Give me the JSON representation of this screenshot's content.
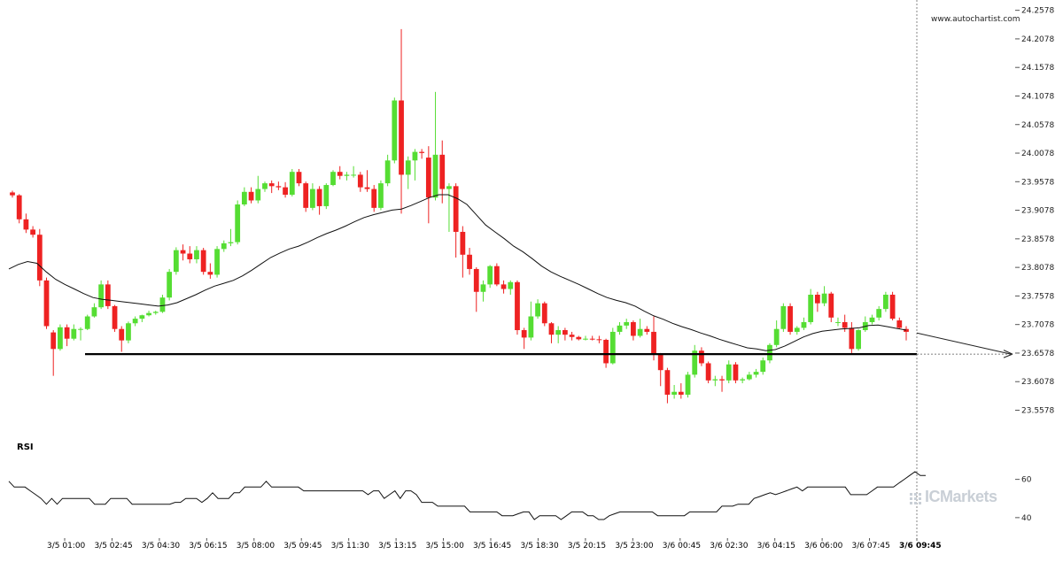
{
  "watermark": "www.autochartist.com",
  "rsi_label": "RSI",
  "brand": "ICMarkets",
  "colors": {
    "bull": "#55dd33",
    "bear": "#ee2222",
    "wick": "#999999",
    "line": "#000000",
    "grid": "#e6e6e6",
    "text": "#222222"
  },
  "chart_data": [
    {
      "type": "candlestick",
      "title": "",
      "timeframe_labels": [
        "3/5 01:00",
        "3/5 02:45",
        "3/5 04:30",
        "3/5 06:15",
        "3/5 08:00",
        "3/5 09:45",
        "3/5 11:30",
        "3/5 13:15",
        "3/5 15:00",
        "3/5 16:45",
        "3/5 18:30",
        "3/5 20:15",
        "3/5 23:00",
        "3/6 00:45",
        "3/6 02:30",
        "3/6 04:15",
        "3/6 06:00",
        "3/6 07:45",
        "3/6 09:45"
      ],
      "y_ticks": [
        "24.2578",
        "24.2078",
        "24.1578",
        "24.1078",
        "24.0578",
        "24.0078",
        "23.9578",
        "23.9078",
        "23.8578",
        "23.8078",
        "23.7578",
        "23.7078",
        "23.6578",
        "23.6078",
        "23.5578"
      ],
      "ylim": [
        23.54,
        24.265
      ],
      "candles": [
        {
          "o": 23.939,
          "h": 23.942,
          "l": 23.93,
          "c": 23.934
        },
        {
          "o": 23.934,
          "h": 23.936,
          "l": 23.885,
          "c": 23.892
        },
        {
          "o": 23.892,
          "h": 23.902,
          "l": 23.868,
          "c": 23.874
        },
        {
          "o": 23.874,
          "h": 23.88,
          "l": 23.86,
          "c": 23.865
        },
        {
          "o": 23.865,
          "h": 23.875,
          "l": 23.775,
          "c": 23.785
        },
        {
          "o": 23.785,
          "h": 23.79,
          "l": 23.7,
          "c": 23.705
        },
        {
          "o": 23.694,
          "h": 23.698,
          "l": 23.618,
          "c": 23.665
        },
        {
          "o": 23.665,
          "h": 23.708,
          "l": 23.662,
          "c": 23.703
        },
        {
          "o": 23.703,
          "h": 23.708,
          "l": 23.67,
          "c": 23.683
        },
        {
          "o": 23.683,
          "h": 23.708,
          "l": 23.68,
          "c": 23.7
        },
        {
          "o": 23.7,
          "h": 23.703,
          "l": 23.68,
          "c": 23.7
        },
        {
          "o": 23.7,
          "h": 23.725,
          "l": 23.698,
          "c": 23.722
        },
        {
          "o": 23.722,
          "h": 23.745,
          "l": 23.72,
          "c": 23.738
        },
        {
          "o": 23.738,
          "h": 23.785,
          "l": 23.735,
          "c": 23.778
        },
        {
          "o": 23.778,
          "h": 23.785,
          "l": 23.735,
          "c": 23.74
        },
        {
          "o": 23.74,
          "h": 23.742,
          "l": 23.695,
          "c": 23.7
        },
        {
          "o": 23.7,
          "h": 23.705,
          "l": 23.66,
          "c": 23.68
        },
        {
          "o": 23.68,
          "h": 23.713,
          "l": 23.675,
          "c": 23.71
        },
        {
          "o": 23.71,
          "h": 23.722,
          "l": 23.705,
          "c": 23.718
        },
        {
          "o": 23.718,
          "h": 23.725,
          "l": 23.712,
          "c": 23.724
        },
        {
          "o": 23.724,
          "h": 23.732,
          "l": 23.722,
          "c": 23.728
        },
        {
          "o": 23.728,
          "h": 23.732,
          "l": 23.725,
          "c": 23.73
        },
        {
          "o": 23.73,
          "h": 23.76,
          "l": 23.728,
          "c": 23.755
        },
        {
          "o": 23.755,
          "h": 23.805,
          "l": 23.75,
          "c": 23.8
        },
        {
          "o": 23.8,
          "h": 23.843,
          "l": 23.795,
          "c": 23.838
        },
        {
          "o": 23.838,
          "h": 23.848,
          "l": 23.82,
          "c": 23.832
        },
        {
          "o": 23.832,
          "h": 23.845,
          "l": 23.815,
          "c": 23.822
        },
        {
          "o": 23.822,
          "h": 23.845,
          "l": 23.815,
          "c": 23.838
        },
        {
          "o": 23.838,
          "h": 23.842,
          "l": 23.795,
          "c": 23.8
        },
        {
          "o": 23.8,
          "h": 23.815,
          "l": 23.788,
          "c": 23.795
        },
        {
          "o": 23.795,
          "h": 23.845,
          "l": 23.79,
          "c": 23.84
        },
        {
          "o": 23.84,
          "h": 23.855,
          "l": 23.835,
          "c": 23.85
        },
        {
          "o": 23.85,
          "h": 23.875,
          "l": 23.845,
          "c": 23.852
        },
        {
          "o": 23.852,
          "h": 23.925,
          "l": 23.848,
          "c": 23.918
        },
        {
          "o": 23.918,
          "h": 23.948,
          "l": 23.915,
          "c": 23.94
        },
        {
          "o": 23.94,
          "h": 23.948,
          "l": 23.92,
          "c": 23.925
        },
        {
          "o": 23.925,
          "h": 23.968,
          "l": 23.92,
          "c": 23.945
        },
        {
          "o": 23.945,
          "h": 23.958,
          "l": 23.94,
          "c": 23.955
        },
        {
          "o": 23.955,
          "h": 23.96,
          "l": 23.938,
          "c": 23.95
        },
        {
          "o": 23.95,
          "h": 23.958,
          "l": 23.943,
          "c": 23.948
        },
        {
          "o": 23.948,
          "h": 23.957,
          "l": 23.93,
          "c": 23.935
        },
        {
          "o": 23.935,
          "h": 23.98,
          "l": 23.932,
          "c": 23.975
        },
        {
          "o": 23.975,
          "h": 23.98,
          "l": 23.95,
          "c": 23.955
        },
        {
          "o": 23.955,
          "h": 23.958,
          "l": 23.905,
          "c": 23.912
        },
        {
          "o": 23.912,
          "h": 23.955,
          "l": 23.908,
          "c": 23.945
        },
        {
          "o": 23.945,
          "h": 23.95,
          "l": 23.9,
          "c": 23.915
        },
        {
          "o": 23.915,
          "h": 23.955,
          "l": 23.91,
          "c": 23.952
        },
        {
          "o": 23.952,
          "h": 23.978,
          "l": 23.95,
          "c": 23.975
        },
        {
          "o": 23.975,
          "h": 23.985,
          "l": 23.962,
          "c": 23.968
        },
        {
          "o": 23.968,
          "h": 23.975,
          "l": 23.96,
          "c": 23.97
        },
        {
          "o": 23.97,
          "h": 23.985,
          "l": 23.965,
          "c": 23.97
        },
        {
          "o": 23.97,
          "h": 23.975,
          "l": 23.94,
          "c": 23.948
        },
        {
          "o": 23.948,
          "h": 23.978,
          "l": 23.94,
          "c": 23.945
        },
        {
          "o": 23.945,
          "h": 23.952,
          "l": 23.905,
          "c": 23.912
        },
        {
          "o": 23.912,
          "h": 23.96,
          "l": 23.908,
          "c": 23.955
        },
        {
          "o": 23.955,
          "h": 24.005,
          "l": 23.95,
          "c": 23.995
        },
        {
          "o": 23.995,
          "h": 24.105,
          "l": 23.99,
          "c": 24.1
        },
        {
          "o": 24.1,
          "h": 24.225,
          "l": 23.902,
          "c": 23.97
        },
        {
          "o": 23.97,
          "h": 24.002,
          "l": 23.945,
          "c": 23.995
        },
        {
          "o": 23.995,
          "h": 24.015,
          "l": 23.96,
          "c": 24.01
        },
        {
          "o": 24.01,
          "h": 24.015,
          "l": 23.998,
          "c": 24.008
        },
        {
          "o": 24.0,
          "h": 24.02,
          "l": 23.885,
          "c": 23.93
        },
        {
          "o": 23.93,
          "h": 24.115,
          "l": 23.925,
          "c": 24.005
        },
        {
          "o": 24.005,
          "h": 24.03,
          "l": 23.92,
          "c": 23.945
        },
        {
          "o": 23.945,
          "h": 23.955,
          "l": 23.87,
          "c": 23.95
        },
        {
          "o": 23.95,
          "h": 23.955,
          "l": 23.825,
          "c": 23.87
        },
        {
          "o": 23.87,
          "h": 23.88,
          "l": 23.79,
          "c": 23.83
        },
        {
          "o": 23.83,
          "h": 23.842,
          "l": 23.795,
          "c": 23.805
        },
        {
          "o": 23.805,
          "h": 23.808,
          "l": 23.73,
          "c": 23.765
        },
        {
          "o": 23.765,
          "h": 23.785,
          "l": 23.748,
          "c": 23.778
        },
        {
          "o": 23.778,
          "h": 23.812,
          "l": 23.772,
          "c": 23.81
        },
        {
          "o": 23.81,
          "h": 23.815,
          "l": 23.775,
          "c": 23.778
        },
        {
          "o": 23.778,
          "h": 23.785,
          "l": 23.762,
          "c": 23.77
        },
        {
          "o": 23.77,
          "h": 23.785,
          "l": 23.76,
          "c": 23.782
        },
        {
          "o": 23.782,
          "h": 23.785,
          "l": 23.69,
          "c": 23.698
        },
        {
          "o": 23.698,
          "h": 23.702,
          "l": 23.665,
          "c": 23.685
        },
        {
          "o": 23.685,
          "h": 23.748,
          "l": 23.68,
          "c": 23.722
        },
        {
          "o": 23.722,
          "h": 23.752,
          "l": 23.718,
          "c": 23.745
        },
        {
          "o": 23.745,
          "h": 23.748,
          "l": 23.705,
          "c": 23.71
        },
        {
          "o": 23.71,
          "h": 23.712,
          "l": 23.675,
          "c": 23.69
        },
        {
          "o": 23.69,
          "h": 23.705,
          "l": 23.675,
          "c": 23.698
        },
        {
          "o": 23.698,
          "h": 23.702,
          "l": 23.68,
          "c": 23.69
        },
        {
          "o": 23.69,
          "h": 23.695,
          "l": 23.68,
          "c": 23.686
        },
        {
          "o": 23.686,
          "h": 23.688,
          "l": 23.68,
          "c": 23.682
        },
        {
          "o": 23.682,
          "h": 23.688,
          "l": 23.68,
          "c": 23.683
        },
        {
          "o": 23.683,
          "h": 23.688,
          "l": 23.68,
          "c": 23.682
        },
        {
          "o": 23.682,
          "h": 23.688,
          "l": 23.675,
          "c": 23.681
        },
        {
          "o": 23.681,
          "h": 23.683,
          "l": 23.632,
          "c": 23.64
        },
        {
          "o": 23.64,
          "h": 23.702,
          "l": 23.638,
          "c": 23.695
        },
        {
          "o": 23.695,
          "h": 23.712,
          "l": 23.69,
          "c": 23.706
        },
        {
          "o": 23.706,
          "h": 23.718,
          "l": 23.7,
          "c": 23.712
        },
        {
          "o": 23.712,
          "h": 23.715,
          "l": 23.68,
          "c": 23.688
        },
        {
          "o": 23.688,
          "h": 23.718,
          "l": 23.685,
          "c": 23.7
        },
        {
          "o": 23.7,
          "h": 23.705,
          "l": 23.69,
          "c": 23.695
        },
        {
          "o": 23.695,
          "h": 23.722,
          "l": 23.645,
          "c": 23.655
        },
        {
          "o": 23.655,
          "h": 23.658,
          "l": 23.6,
          "c": 23.628
        },
        {
          "o": 23.628,
          "h": 23.632,
          "l": 23.57,
          "c": 23.585
        },
        {
          "o": 23.585,
          "h": 23.602,
          "l": 23.578,
          "c": 23.59
        },
        {
          "o": 23.59,
          "h": 23.605,
          "l": 23.578,
          "c": 23.585
        },
        {
          "o": 23.585,
          "h": 23.625,
          "l": 23.58,
          "c": 23.62
        },
        {
          "o": 23.62,
          "h": 23.672,
          "l": 23.615,
          "c": 23.662
        },
        {
          "o": 23.662,
          "h": 23.668,
          "l": 23.635,
          "c": 23.64
        },
        {
          "o": 23.64,
          "h": 23.643,
          "l": 23.605,
          "c": 23.61
        },
        {
          "o": 23.61,
          "h": 23.618,
          "l": 23.6,
          "c": 23.612
        },
        {
          "o": 23.612,
          "h": 23.618,
          "l": 23.59,
          "c": 23.61
        },
        {
          "o": 23.61,
          "h": 23.645,
          "l": 23.605,
          "c": 23.638
        },
        {
          "o": 23.638,
          "h": 23.642,
          "l": 23.605,
          "c": 23.61
        },
        {
          "o": 23.61,
          "h": 23.615,
          "l": 23.605,
          "c": 23.612
        },
        {
          "o": 23.612,
          "h": 23.625,
          "l": 23.61,
          "c": 23.62
        },
        {
          "o": 23.62,
          "h": 23.63,
          "l": 23.615,
          "c": 23.625
        },
        {
          "o": 23.625,
          "h": 23.65,
          "l": 23.62,
          "c": 23.645
        },
        {
          "o": 23.645,
          "h": 23.675,
          "l": 23.64,
          "c": 23.672
        },
        {
          "o": 23.672,
          "h": 23.715,
          "l": 23.668,
          "c": 23.7
        },
        {
          "o": 23.7,
          "h": 23.745,
          "l": 23.695,
          "c": 23.74
        },
        {
          "o": 23.74,
          "h": 23.745,
          "l": 23.69,
          "c": 23.695
        },
        {
          "o": 23.695,
          "h": 23.705,
          "l": 23.69,
          "c": 23.702
        },
        {
          "o": 23.702,
          "h": 23.72,
          "l": 23.698,
          "c": 23.712
        },
        {
          "o": 23.712,
          "h": 23.77,
          "l": 23.708,
          "c": 23.76
        },
        {
          "o": 23.76,
          "h": 23.765,
          "l": 23.73,
          "c": 23.745
        },
        {
          "o": 23.745,
          "h": 23.775,
          "l": 23.74,
          "c": 23.762
        },
        {
          "o": 23.762,
          "h": 23.765,
          "l": 23.712,
          "c": 23.72
        },
        {
          "o": 23.712,
          "h": 23.72,
          "l": 23.705,
          "c": 23.712
        },
        {
          "o": 23.712,
          "h": 23.725,
          "l": 23.695,
          "c": 23.702
        },
        {
          "o": 23.702,
          "h": 23.712,
          "l": 23.655,
          "c": 23.665
        },
        {
          "o": 23.665,
          "h": 23.7,
          "l": 23.662,
          "c": 23.698
        },
        {
          "o": 23.698,
          "h": 23.722,
          "l": 23.695,
          "c": 23.712
        },
        {
          "o": 23.712,
          "h": 23.725,
          "l": 23.708,
          "c": 23.72
        },
        {
          "o": 23.72,
          "h": 23.74,
          "l": 23.715,
          "c": 23.735
        },
        {
          "o": 23.735,
          "h": 23.765,
          "l": 23.73,
          "c": 23.76
        },
        {
          "o": 23.76,
          "h": 23.765,
          "l": 23.715,
          "c": 23.718
        },
        {
          "o": 23.715,
          "h": 23.72,
          "l": 23.7,
          "c": 23.702
        },
        {
          "o": 23.7,
          "h": 23.705,
          "l": 23.68,
          "c": 23.695
        }
      ],
      "ma": [
        23.805,
        23.813,
        23.818,
        23.815,
        23.8,
        23.787,
        23.778,
        23.77,
        23.762,
        23.755,
        23.752,
        23.75,
        23.748,
        23.746,
        23.744,
        23.742,
        23.74,
        23.742,
        23.746,
        23.753,
        23.76,
        23.768,
        23.775,
        23.78,
        23.785,
        23.793,
        23.803,
        23.814,
        23.825,
        23.833,
        23.84,
        23.845,
        23.852,
        23.86,
        23.867,
        23.873,
        23.88,
        23.888,
        23.895,
        23.9,
        23.904,
        23.908,
        23.91,
        23.916,
        23.923,
        23.93,
        23.935,
        23.935,
        23.928,
        23.918,
        23.9,
        23.882,
        23.87,
        23.858,
        23.845,
        23.835,
        23.823,
        23.81,
        23.8,
        23.792,
        23.785,
        23.778,
        23.77,
        23.762,
        23.755,
        23.75,
        23.746,
        23.74,
        23.731,
        23.723,
        23.717,
        23.71,
        23.704,
        23.699,
        23.693,
        23.688,
        23.682,
        23.677,
        23.672,
        23.667,
        23.665,
        23.662,
        23.664,
        23.67,
        23.678,
        23.686,
        23.692,
        23.696,
        23.698,
        23.7,
        23.701,
        23.702,
        23.706,
        23.707,
        23.704,
        23.701,
        23.698
      ],
      "support_level": 23.656,
      "projection": {
        "from": 23.693,
        "to": 23.656
      },
      "rsi": {
        "ylim": [
          33,
          70
        ],
        "y_ticks": [
          "60",
          "40"
        ],
        "values": [
          59,
          56,
          56,
          56,
          54,
          52,
          50,
          47,
          50,
          47,
          50,
          50,
          50,
          50,
          50,
          50,
          47,
          47,
          47,
          50,
          50,
          50,
          50,
          47,
          47,
          47,
          47,
          47,
          47,
          47,
          47,
          48,
          48,
          50,
          50,
          50,
          48,
          50,
          53,
          50,
          50,
          50,
          53,
          53,
          56,
          56,
          56,
          56,
          59,
          56,
          56,
          56,
          56,
          56,
          56,
          54,
          54,
          54,
          54,
          54,
          54,
          54,
          54,
          54,
          54,
          54,
          54,
          52,
          54,
          54,
          50,
          52,
          54,
          50,
          54,
          54,
          52,
          48,
          48,
          48,
          46,
          46,
          46,
          46,
          46,
          46,
          43,
          43,
          43,
          43,
          43,
          43,
          41,
          41,
          41,
          42,
          43,
          43,
          39,
          41,
          41,
          41,
          41,
          39,
          41,
          43,
          43,
          43,
          41,
          41,
          39,
          39,
          41,
          42,
          43,
          43,
          43,
          43,
          43,
          43,
          43,
          41,
          41,
          41,
          41,
          41,
          41,
          43,
          43,
          43,
          43,
          43,
          43,
          46,
          46,
          46,
          47,
          47,
          47,
          50,
          51,
          52,
          53,
          52,
          53,
          54,
          55,
          56,
          54,
          56,
          56,
          56,
          56,
          56,
          56,
          56,
          56,
          52,
          52,
          52,
          52,
          54,
          56,
          56,
          56,
          56,
          58,
          60,
          62,
          64,
          62,
          62
        ]
      }
    }
  ]
}
